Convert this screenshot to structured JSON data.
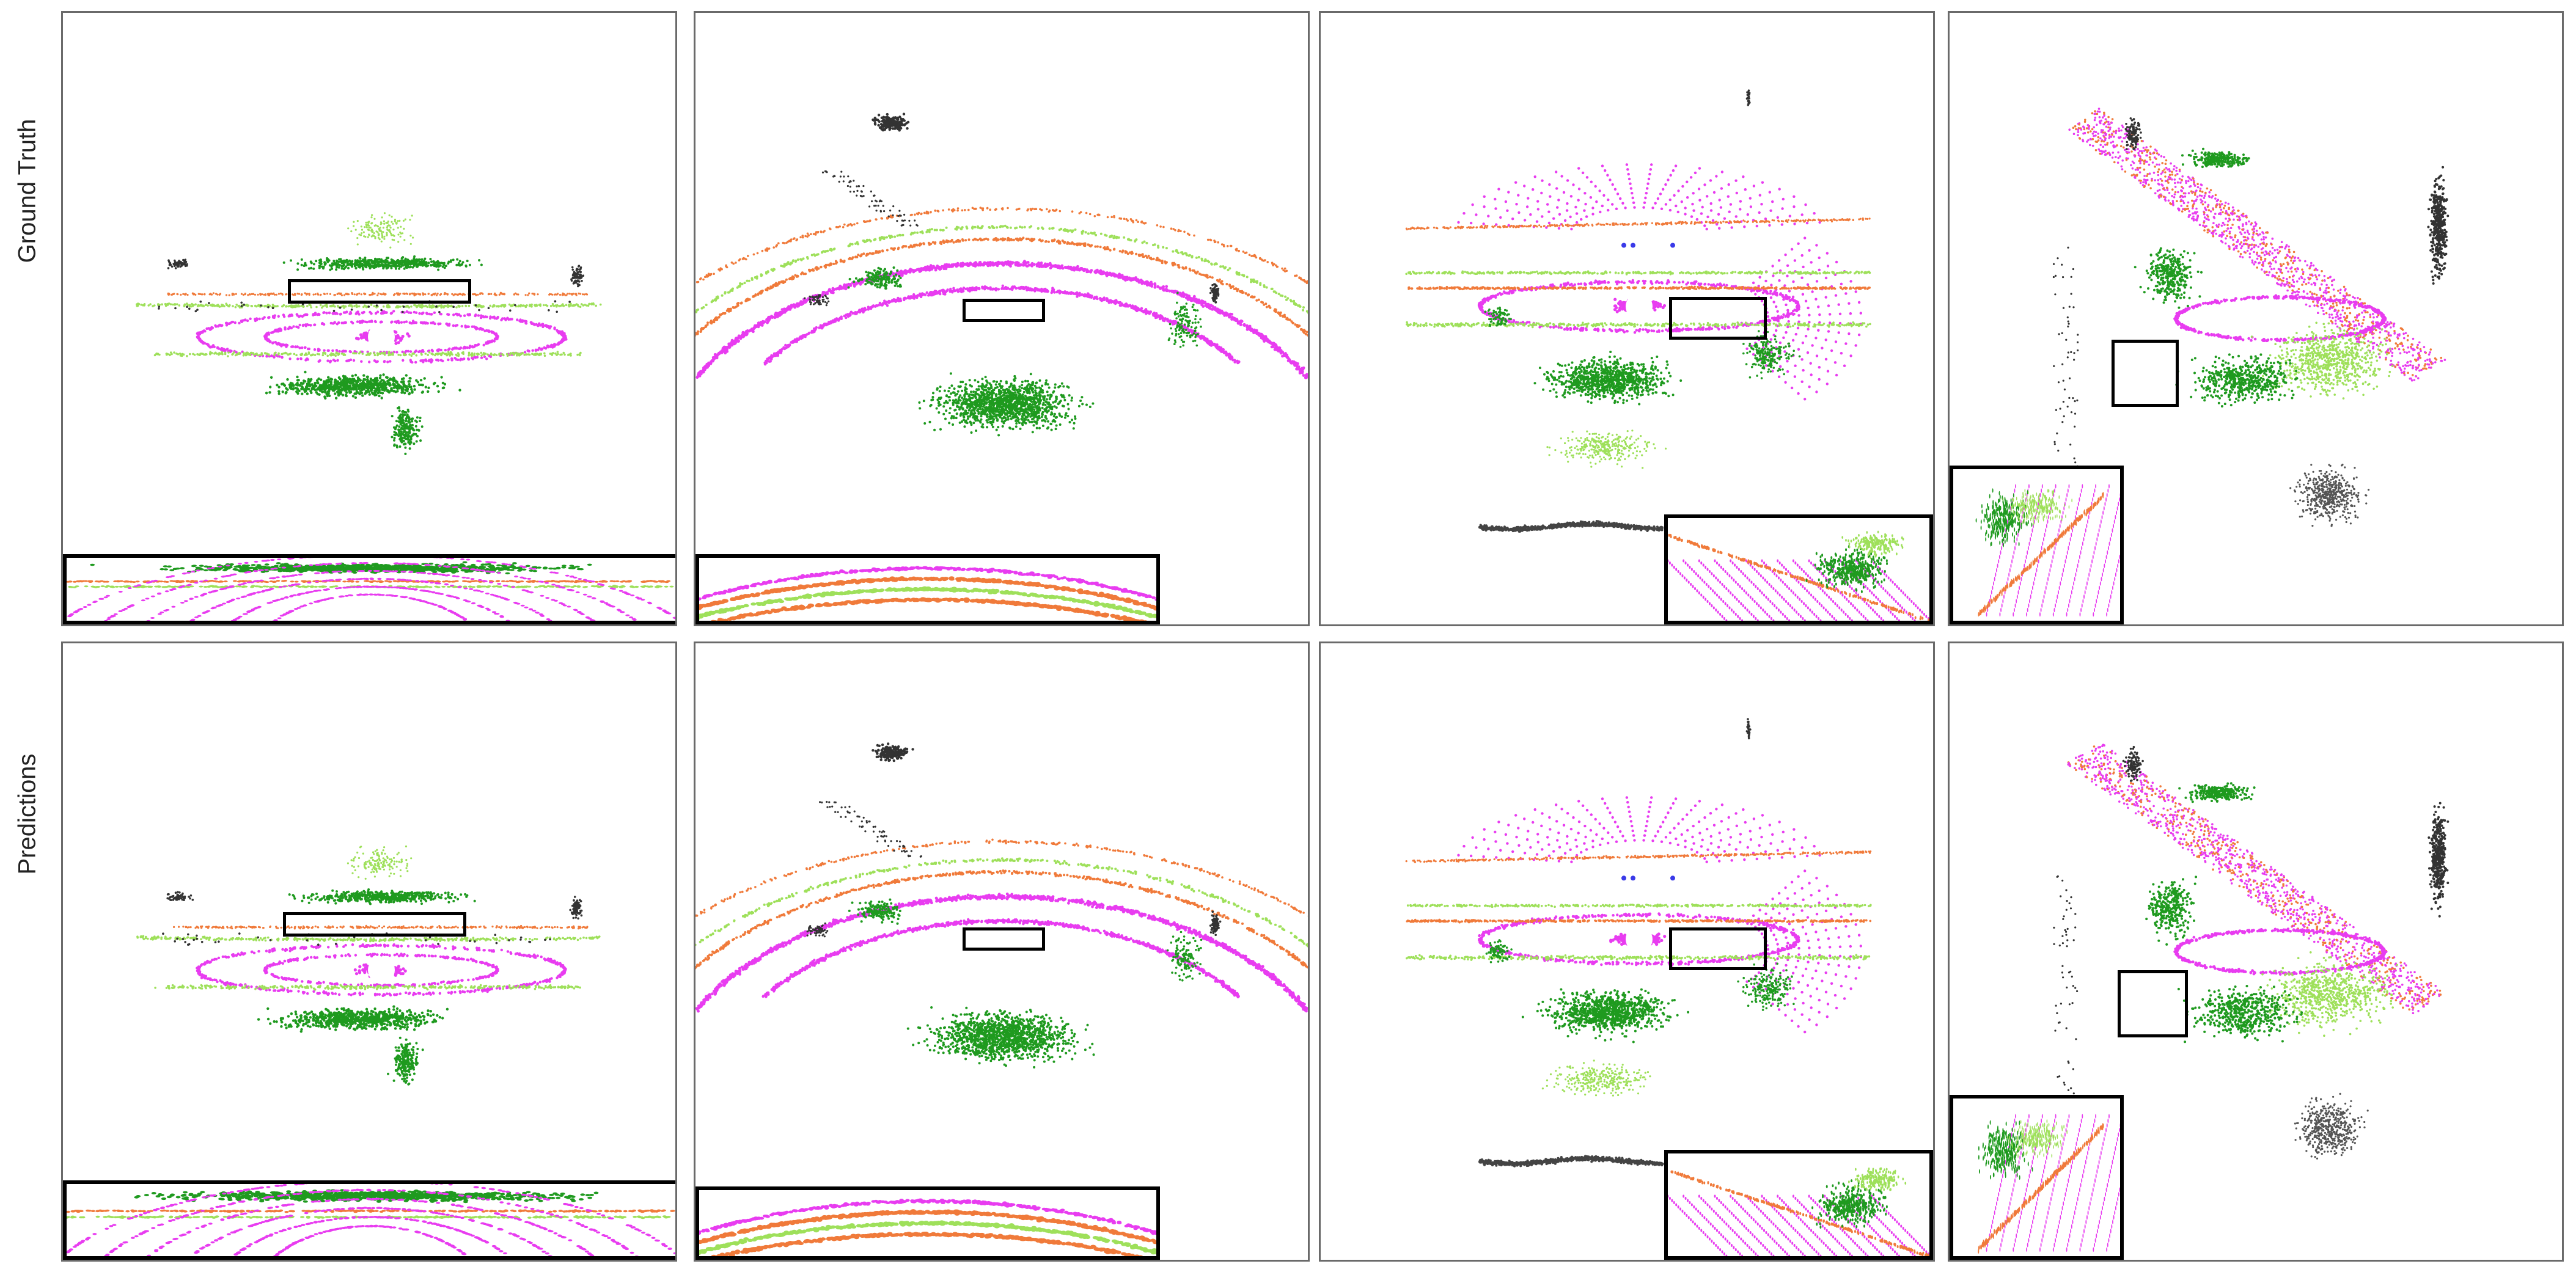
{
  "rows": [
    {
      "label": "Ground Truth"
    },
    {
      "label": "Predictions"
    }
  ],
  "colors": {
    "road": "#e83cf0",
    "vegetation": "#1f9a1f",
    "terrain": "#9ee05a",
    "sidewalk": "#f07a3a",
    "building": "#333333",
    "vehicle": "#3a3ae8",
    "panel_border": "#6a6a6a"
  }
}
